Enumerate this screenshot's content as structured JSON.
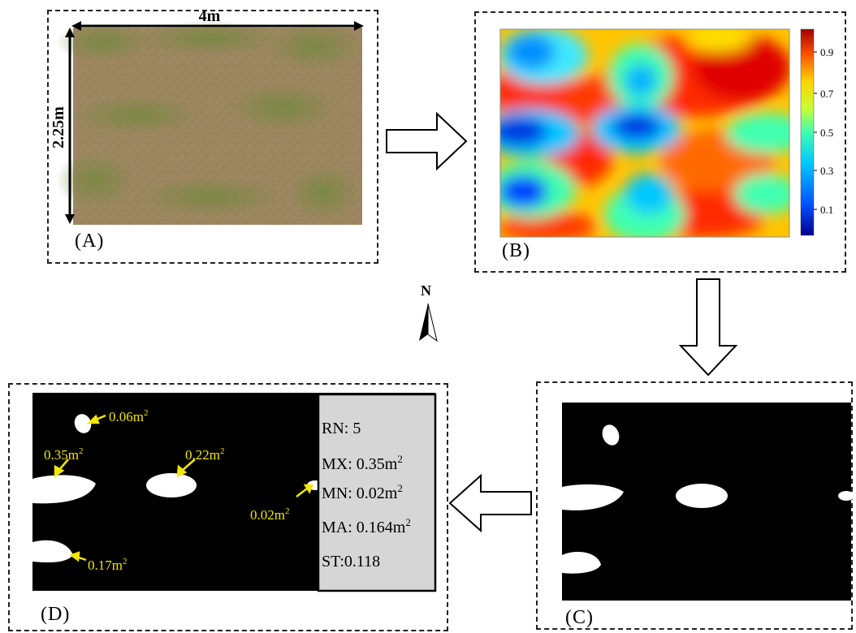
{
  "panels": {
    "a": {
      "label": "(A)",
      "width_label": "4m",
      "height_label": "2.25m"
    },
    "b": {
      "label": "(B)",
      "colorbar_ticks": [
        "0.9",
        "0.7",
        "0.5",
        "0.3",
        "0.1"
      ]
    },
    "c": {
      "label": "(C)"
    },
    "d": {
      "label": "(D)",
      "annotations": [
        "0.06m",
        "0.35m",
        "0.22m",
        "0.02m",
        "0.17m"
      ],
      "exponent": "2",
      "stats": [
        {
          "key": "RN:",
          "value": "5",
          "sup": ""
        },
        {
          "key": "MX:",
          "value": "0.35m",
          "sup": "2"
        },
        {
          "key": "MN:",
          "value": "0.02m",
          "sup": "2"
        },
        {
          "key": "MA:",
          "value": "0.164m",
          "sup": "2"
        },
        {
          "key": "ST:",
          "value": "0.118",
          "sup": ""
        }
      ]
    }
  },
  "north_label": "N",
  "colors": {
    "annotation": "#f2e600",
    "stats_bg": "#d6d6d6",
    "mask_bg": "#000000",
    "patch": "#ffffff"
  }
}
